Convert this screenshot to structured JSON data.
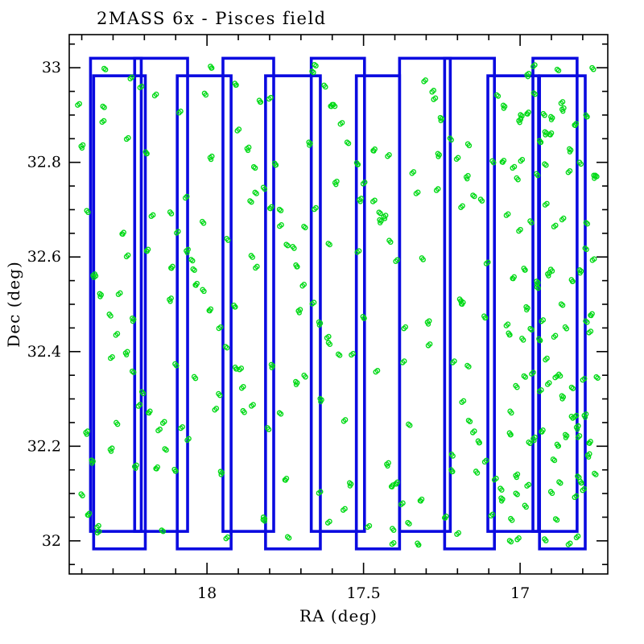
{
  "chart_data": {
    "type": "scatter",
    "title": "2MASS 6x - Pisces field",
    "xlabel": "RA (deg)",
    "ylabel": "Dec (deg)",
    "colors": {
      "tile_outline": "#0a0ae0",
      "point": "#00d916",
      "frame": "#000000",
      "background": "#ffffff"
    },
    "x_axis": {
      "min": 16.72,
      "max": 18.44,
      "reversed": true,
      "major_ticks": [
        18,
        17.5,
        17
      ],
      "tick_labels": [
        "18",
        "17.5",
        "17"
      ],
      "major_step": 0.5,
      "minor_step": 0.1
    },
    "y_axis": {
      "min": 31.93,
      "max": 33.07,
      "major_ticks": [
        32,
        32.2,
        32.4,
        32.6,
        32.8,
        33
      ],
      "tick_labels": [
        "32",
        "32.2",
        "32.4",
        "32.6",
        "32.8",
        "33"
      ],
      "major_step": 0.2,
      "minor_step": 0.05
    },
    "tiles": [
      {
        "ra_max": 18.372,
        "ra_min": 18.21,
        "dec_min": 32.02,
        "dec_max": 33.02
      },
      {
        "ra_max": 18.362,
        "ra_min": 18.197,
        "dec_min": 31.983,
        "dec_max": 32.983
      },
      {
        "ra_max": 18.231,
        "ra_min": 18.062,
        "dec_min": 32.02,
        "dec_max": 33.02
      },
      {
        "ra_max": 18.095,
        "ra_min": 17.923,
        "dec_min": 31.983,
        "dec_max": 32.983
      },
      {
        "ra_max": 17.949,
        "ra_min": 17.787,
        "dec_min": 32.02,
        "dec_max": 33.02
      },
      {
        "ra_max": 17.813,
        "ra_min": 17.638,
        "dec_min": 31.983,
        "dec_max": 32.983
      },
      {
        "ra_max": 17.667,
        "ra_min": 17.497,
        "dec_min": 32.02,
        "dec_max": 33.02
      },
      {
        "ra_max": 17.523,
        "ra_min": 17.385,
        "dec_min": 31.983,
        "dec_max": 32.983
      },
      {
        "ra_max": 17.385,
        "ra_min": 17.223,
        "dec_min": 32.02,
        "dec_max": 33.02
      },
      {
        "ra_max": 17.241,
        "ra_min": 17.082,
        "dec_min": 31.983,
        "dec_max": 33.02
      },
      {
        "ra_max": 17.103,
        "ra_min": 16.941,
        "dec_min": 32.02,
        "dec_max": 32.983
      },
      {
        "ra_max": 16.959,
        "ra_min": 16.818,
        "dec_min": 32.02,
        "dec_max": 33.02
      },
      {
        "ra_max": 16.938,
        "ra_min": 16.792,
        "dec_min": 31.983,
        "dec_max": 32.983
      }
    ],
    "points": [
      [
        18.12,
        32.51
      ],
      [
        17.088,
        32.056
      ],
      [
        17.726,
        32.622
      ],
      [
        18.364,
        32.168
      ],
      [
        17.332,
        32.734
      ],
      [
        17.97,
        32.28
      ],
      [
        16.938,
        32.846
      ],
      [
        17.576,
        32.392
      ],
      [
        18.214,
        32.958
      ],
      [
        17.182,
        32.504
      ],
      [
        17.82,
        32.05
      ],
      [
        16.788,
        32.616
      ],
      [
        17.426,
        32.162
      ],
      [
        18.064,
        32.728
      ],
      [
        17.032,
        32.274
      ],
      [
        17.67,
        32.84
      ],
      [
        18.308,
        32.386
      ],
      [
        17.276,
        32.952
      ],
      [
        17.914,
        32.498
      ],
      [
        16.882,
        32.044
      ],
      [
        17.52,
        32.61
      ],
      [
        18.158,
        32.156
      ],
      [
        17.126,
        32.722
      ],
      [
        17.764,
        32.268
      ],
      [
        18.402,
        32.834
      ],
      [
        17.37,
        32.38
      ],
      [
        18.008,
        32.946
      ],
      [
        16.976,
        32.492
      ],
      [
        17.614,
        32.038
      ],
      [
        18.252,
        32.604
      ],
      [
        17.22,
        32.15
      ],
      [
        17.858,
        32.716
      ],
      [
        16.826,
        32.262
      ],
      [
        17.464,
        32.828
      ],
      [
        18.102,
        32.374
      ],
      [
        17.07,
        32.94
      ],
      [
        17.708,
        32.486
      ],
      [
        18.346,
        32.032
      ],
      [
        17.314,
        32.598
      ],
      [
        17.952,
        32.144
      ],
      [
        16.92,
        32.71
      ],
      [
        17.558,
        32.256
      ],
      [
        18.196,
        32.822
      ],
      [
        17.164,
        32.368
      ],
      [
        17.802,
        32.934
      ],
      [
        16.77,
        32.48
      ],
      [
        17.408,
        32.026
      ],
      [
        18.046,
        32.592
      ],
      [
        17.014,
        32.138
      ],
      [
        17.652,
        32.704
      ],
      [
        18.29,
        32.25
      ],
      [
        17.258,
        32.816
      ],
      [
        17.896,
        32.362
      ],
      [
        16.864,
        32.928
      ],
      [
        17.502,
        32.474
      ],
      [
        18.14,
        32.02
      ],
      [
        17.108,
        32.586
      ],
      [
        17.746,
        32.132
      ],
      [
        18.384,
        32.698
      ],
      [
        17.352,
        32.244
      ],
      [
        17.99,
        32.81
      ],
      [
        16.958,
        32.356
      ],
      [
        17.596,
        32.922
      ],
      [
        18.234,
        32.468
      ],
      [
        17.202,
        32.014
      ],
      [
        17.84,
        32.58
      ],
      [
        16.808,
        32.126
      ],
      [
        17.446,
        32.692
      ],
      [
        18.084,
        32.238
      ],
      [
        17.052,
        32.804
      ],
      [
        17.69,
        32.35
      ],
      [
        18.328,
        32.916
      ],
      [
        17.296,
        32.462
      ],
      [
        17.934,
        32.008
      ],
      [
        16.902,
        32.574
      ],
      [
        17.54,
        32.12
      ],
      [
        18.178,
        32.686
      ],
      [
        17.146,
        32.232
      ],
      [
        17.784,
        32.798
      ],
      [
        16.752,
        32.344
      ],
      [
        17.643,
        32.101
      ],
      [
        18.266,
        32.652
      ],
      [
        17.219,
        32.183
      ],
      [
        17.842,
        32.734
      ],
      [
        16.795,
        32.265
      ],
      [
        17.418,
        32.816
      ],
      [
        18.041,
        32.347
      ],
      [
        16.994,
        32.898
      ],
      [
        17.617,
        32.429
      ],
      [
        18.24,
        32.98
      ],
      [
        17.193,
        32.511
      ],
      [
        17.816,
        32.042
      ],
      [
        16.769,
        32.593
      ],
      [
        17.392,
        32.124
      ],
      [
        18.015,
        32.675
      ],
      [
        16.968,
        32.206
      ],
      [
        17.591,
        32.757
      ],
      [
        18.214,
        32.288
      ],
      [
        17.167,
        32.839
      ],
      [
        17.79,
        32.37
      ],
      [
        18.413,
        32.921
      ],
      [
        17.366,
        32.452
      ],
      [
        17.989,
        33.003
      ],
      [
        16.942,
        32.534
      ],
      [
        17.565,
        32.065
      ],
      [
        18.188,
        32.616
      ],
      [
        17.141,
        32.147
      ],
      [
        17.764,
        32.698
      ],
      [
        18.387,
        32.229
      ],
      [
        17.34,
        32.78
      ],
      [
        17.963,
        32.311
      ],
      [
        16.916,
        32.862
      ],
      [
        17.539,
        32.393
      ],
      [
        18.162,
        32.944
      ],
      [
        17.115,
        32.475
      ],
      [
        17.738,
        32.006
      ],
      [
        18.361,
        32.557
      ],
      [
        17.314,
        32.088
      ],
      [
        17.937,
        32.639
      ],
      [
        16.89,
        32.17
      ],
      [
        17.513,
        32.721
      ],
      [
        18.136,
        32.252
      ],
      [
        17.089,
        32.803
      ],
      [
        17.712,
        32.334
      ],
      [
        18.335,
        32.885
      ],
      [
        17.288,
        32.416
      ],
      [
        17.911,
        32.967
      ],
      [
        16.864,
        32.498
      ],
      [
        17.487,
        32.029
      ],
      [
        18.11,
        32.58
      ],
      [
        17.063,
        32.111
      ],
      [
        17.686,
        32.662
      ],
      [
        18.309,
        32.193
      ],
      [
        17.262,
        32.744
      ],
      [
        17.885,
        32.275
      ],
      [
        16.838,
        32.826
      ],
      [
        17.461,
        32.357
      ],
      [
        18.084,
        32.908
      ],
      [
        17.037,
        32.439
      ],
      [
        17.66,
        32.99
      ],
      [
        18.283,
        32.521
      ],
      [
        17.236,
        32.052
      ],
      [
        17.859,
        32.603
      ],
      [
        16.812,
        32.134
      ],
      [
        17.435,
        32.685
      ],
      [
        18.058,
        32.216
      ],
      [
        17.011,
        32.767
      ],
      [
        17.634,
        32.298
      ],
      [
        18.257,
        32.849
      ],
      [
        17.21,
        32.38
      ],
      [
        17.833,
        32.931
      ],
      [
        16.786,
        32.462
      ],
      [
        17.409,
        31.993
      ],
      [
        18.032,
        32.544
      ],
      [
        16.985,
        32.075
      ],
      [
        17.608,
        32.626
      ],
      [
        18.231,
        32.157
      ],
      [
        17.184,
        32.708
      ],
      [
        17.807,
        32.239
      ],
      [
        16.76,
        32.77
      ],
      [
        17.186,
        32.293
      ],
      [
        17.898,
        32.87
      ],
      [
        16.94,
        32.427
      ],
      [
        17.652,
        33.004
      ],
      [
        18.364,
        32.561
      ],
      [
        17.406,
        32.118
      ],
      [
        18.118,
        32.695
      ],
      [
        17.16,
        32.252
      ],
      [
        17.872,
        32.829
      ],
      [
        16.914,
        32.386
      ],
      [
        17.626,
        32.963
      ],
      [
        18.338,
        32.52
      ],
      [
        17.38,
        32.077
      ],
      [
        18.092,
        32.654
      ],
      [
        17.134,
        32.211
      ],
      [
        17.846,
        32.788
      ],
      [
        16.888,
        32.345
      ],
      [
        17.6,
        32.922
      ],
      [
        18.312,
        32.479
      ],
      [
        17.354,
        32.036
      ],
      [
        18.066,
        32.613
      ],
      [
        17.108,
        32.17
      ],
      [
        17.82,
        32.747
      ],
      [
        16.862,
        32.304
      ],
      [
        17.574,
        32.881
      ],
      [
        18.286,
        32.438
      ],
      [
        17.328,
        31.995
      ],
      [
        18.04,
        32.572
      ],
      [
        17.082,
        32.129
      ],
      [
        17.794,
        32.706
      ],
      [
        16.836,
        32.263
      ],
      [
        17.548,
        32.84
      ],
      [
        18.26,
        32.397
      ],
      [
        17.302,
        32.974
      ],
      [
        18.014,
        32.531
      ],
      [
        17.056,
        32.088
      ],
      [
        17.768,
        32.665
      ],
      [
        16.81,
        32.222
      ],
      [
        17.522,
        32.799
      ],
      [
        18.234,
        32.356
      ],
      [
        17.276,
        32.933
      ],
      [
        17.988,
        32.49
      ],
      [
        17.03,
        32.047
      ],
      [
        17.742,
        32.624
      ],
      [
        16.784,
        32.181
      ],
      [
        17.496,
        32.758
      ],
      [
        18.208,
        32.315
      ],
      [
        17.25,
        32.892
      ],
      [
        17.962,
        32.449
      ],
      [
        17.004,
        32.006
      ],
      [
        17.716,
        32.583
      ],
      [
        16.758,
        32.14
      ],
      [
        17.47,
        32.717
      ],
      [
        18.182,
        32.274
      ],
      [
        17.224,
        32.851
      ],
      [
        17.936,
        32.408
      ],
      [
        16.978,
        32.985
      ],
      [
        17.69,
        32.542
      ],
      [
        18.402,
        32.099
      ],
      [
        17.444,
        32.676
      ],
      [
        18.156,
        32.233
      ],
      [
        17.198,
        32.81
      ],
      [
        17.91,
        32.367
      ],
      [
        16.952,
        32.944
      ],
      [
        17.664,
        32.501
      ],
      [
        18.376,
        32.058
      ],
      [
        17.418,
        32.635
      ],
      [
        18.13,
        32.192
      ],
      [
        17.172,
        32.769
      ],
      [
        17.884,
        32.326
      ],
      [
        16.926,
        32.903
      ],
      [
        17.638,
        32.46
      ],
      [
        18.35,
        32.017
      ],
      [
        17.392,
        32.594
      ],
      [
        18.104,
        32.151
      ],
      [
        17.146,
        32.728
      ],
      [
        17.858,
        32.285
      ],
      [
        16.9,
        32.862
      ],
      [
        17.612,
        32.419
      ],
      [
        18.324,
        32.996
      ],
      [
        16.82,
        32.24
      ],
      [
        16.993,
        32.806
      ],
      [
        16.876,
        32.352
      ],
      [
        17.049,
        32.918
      ],
      [
        16.932,
        32.464
      ],
      [
        16.815,
        32.01
      ],
      [
        16.988,
        32.576
      ],
      [
        16.871,
        32.122
      ],
      [
        17.044,
        32.688
      ],
      [
        16.927,
        32.234
      ],
      [
        16.81,
        32.8
      ],
      [
        16.983,
        32.346
      ],
      [
        16.866,
        32.912
      ],
      [
        17.039,
        32.458
      ],
      [
        16.922,
        32.004
      ],
      [
        16.805,
        32.57
      ],
      [
        16.978,
        32.116
      ],
      [
        16.861,
        32.682
      ],
      [
        17.034,
        32.228
      ],
      [
        16.917,
        32.794
      ],
      [
        16.8,
        32.34
      ],
      [
        16.973,
        32.906
      ],
      [
        16.856,
        32.452
      ],
      [
        17.029,
        31.998
      ],
      [
        16.912,
        32.564
      ],
      [
        16.795,
        32.11
      ],
      [
        16.968,
        32.676
      ],
      [
        16.851,
        32.222
      ],
      [
        17.024,
        32.788
      ],
      [
        16.907,
        32.334
      ],
      [
        16.79,
        32.9
      ],
      [
        16.963,
        32.446
      ],
      [
        16.846,
        31.992
      ],
      [
        17.019,
        32.558
      ],
      [
        16.902,
        32.104
      ],
      [
        16.785,
        32.67
      ],
      [
        16.958,
        32.216
      ],
      [
        16.841,
        32.782
      ],
      [
        17.014,
        32.328
      ],
      [
        16.897,
        32.894
      ],
      [
        16.78,
        32.44
      ],
      [
        16.953,
        33.006
      ],
      [
        16.836,
        32.552
      ],
      [
        17.009,
        32.098
      ],
      [
        16.892,
        32.664
      ],
      [
        16.775,
        32.21
      ],
      [
        16.948,
        32.776
      ],
      [
        16.831,
        32.322
      ],
      [
        17.004,
        32.888
      ],
      [
        16.887,
        32.434
      ],
      [
        16.77,
        33.0
      ],
      [
        16.943,
        32.546
      ],
      [
        16.826,
        32.092
      ],
      [
        16.999,
        32.658
      ],
      [
        16.882,
        32.204
      ],
      [
        16.755,
        32.77
      ],
      [
        16.938,
        32.316
      ],
      [
        16.821,
        32.882
      ],
      [
        16.994,
        32.428
      ],
      [
        16.877,
        32.994
      ]
    ]
  }
}
